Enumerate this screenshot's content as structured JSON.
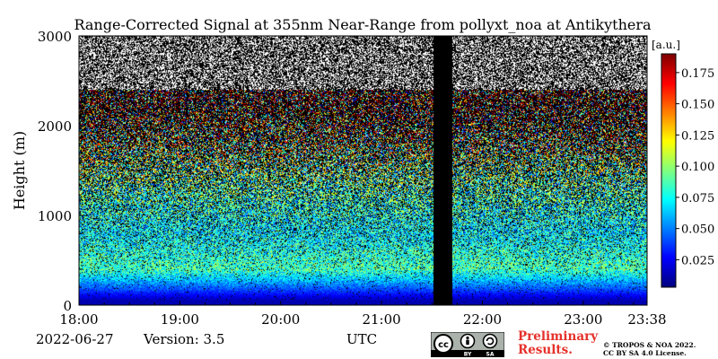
{
  "chart_data": {
    "type": "heatmap",
    "title": "Range-Corrected Signal at 355nm Near-Range from pollyxt_noa at Antikythera",
    "ylabel": "Height (m)",
    "xlabel": "UTC",
    "x_range": [
      "18:00",
      "23:38"
    ],
    "x_ticks": [
      "18:00",
      "19:00",
      "20:00",
      "21:00",
      "22:00",
      "23:00",
      "23:38"
    ],
    "ylim": [
      0,
      3000
    ],
    "y_ticks": [
      0,
      1000,
      2000,
      3000
    ],
    "colorbar": {
      "label": "[a.u.]",
      "range": [
        0.003,
        0.19
      ],
      "ticks": [
        0.025,
        0.05,
        0.075,
        0.1,
        0.125,
        0.15,
        0.175
      ],
      "tick_labels": [
        "0.025",
        "0.050",
        "0.075",
        "0.100",
        "0.125",
        "0.150",
        "0.175"
      ],
      "colormap": "jet"
    },
    "data_gap": {
      "start": "21:31",
      "end": "21:42"
    },
    "profile": [
      {
        "height": 50,
        "value": 0.012
      },
      {
        "height": 150,
        "value": 0.035
      },
      {
        "height": 400,
        "value": 0.085
      },
      {
        "height": 800,
        "value": 0.07
      },
      {
        "height": 1200,
        "value": 0.08
      },
      {
        "height": 1700,
        "value": 0.1
      },
      {
        "height": 2000,
        "value": 0.12
      },
      {
        "height": 2350,
        "value": 0.15
      }
    ],
    "signal_top_height": 2400
  },
  "footer": {
    "date": "2022-06-27",
    "version": "Version: 3.5",
    "utc_label": "UTC",
    "preliminary_line1": "Preliminary",
    "preliminary_line2": "Results.",
    "copyright_line1": "© TROPOS & NOA 2022.",
    "copyright_line2": "CC BY SA 4.0 License.",
    "license_badge": [
      "BY",
      "SA"
    ]
  }
}
